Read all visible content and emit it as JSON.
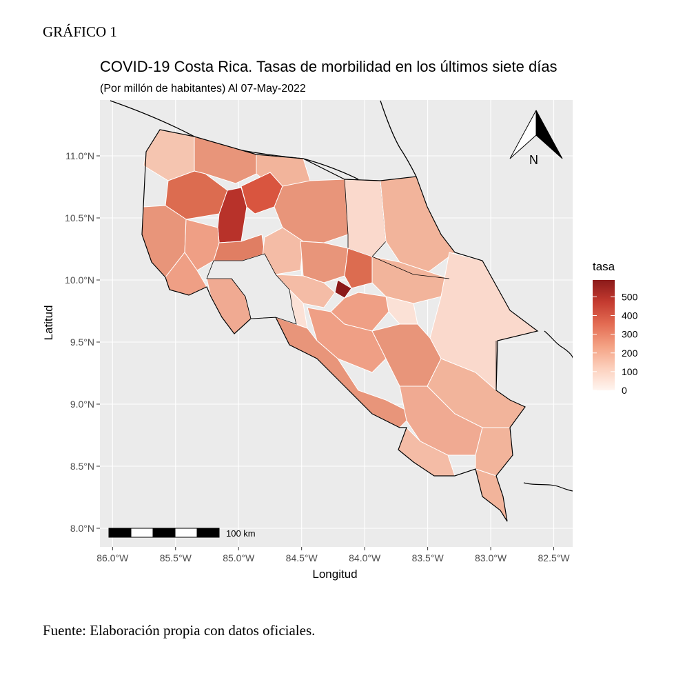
{
  "document": {
    "heading": "GRÁFICO 1",
    "source": "Fuente: Elaboración propia con datos oficiales."
  },
  "chart_data": {
    "type": "choropleth-map",
    "title": "COVID-19 Costa Rica. Tasas de morbilidad en los últimos siete días",
    "subtitle": "(Por millón de habitantes) Al 07-May-2022",
    "xlabel": "Longitud",
    "ylabel": "Latitud",
    "x_ticks": [
      "86.0°W",
      "85.5°W",
      "85.0°W",
      "84.5°W",
      "84.0°W",
      "83.5°W",
      "83.0°W",
      "82.5°W"
    ],
    "y_ticks": [
      "11.0°N",
      "10.5°N",
      "10.0°N",
      "9.5°N",
      "9.0°N",
      "8.5°N",
      "8.0°N"
    ],
    "xlim": [
      -86.1,
      -82.35
    ],
    "ylim": [
      7.85,
      11.45
    ],
    "grid": true,
    "legend": {
      "title": "tasa",
      "ticks": [
        "0",
        "100",
        "200",
        "300",
        "400",
        "500"
      ],
      "range": [
        0,
        590
      ],
      "placement": "right",
      "color_low": "#fff5f0",
      "color_high": "#8b1a1a"
    },
    "scale_bar_label": "100 km",
    "north_arrow_label": "N",
    "colors": {
      "panel": "#ebebeb",
      "grid": "#ffffff",
      "border": "#ffffff",
      "outline": "#000000"
    }
  }
}
